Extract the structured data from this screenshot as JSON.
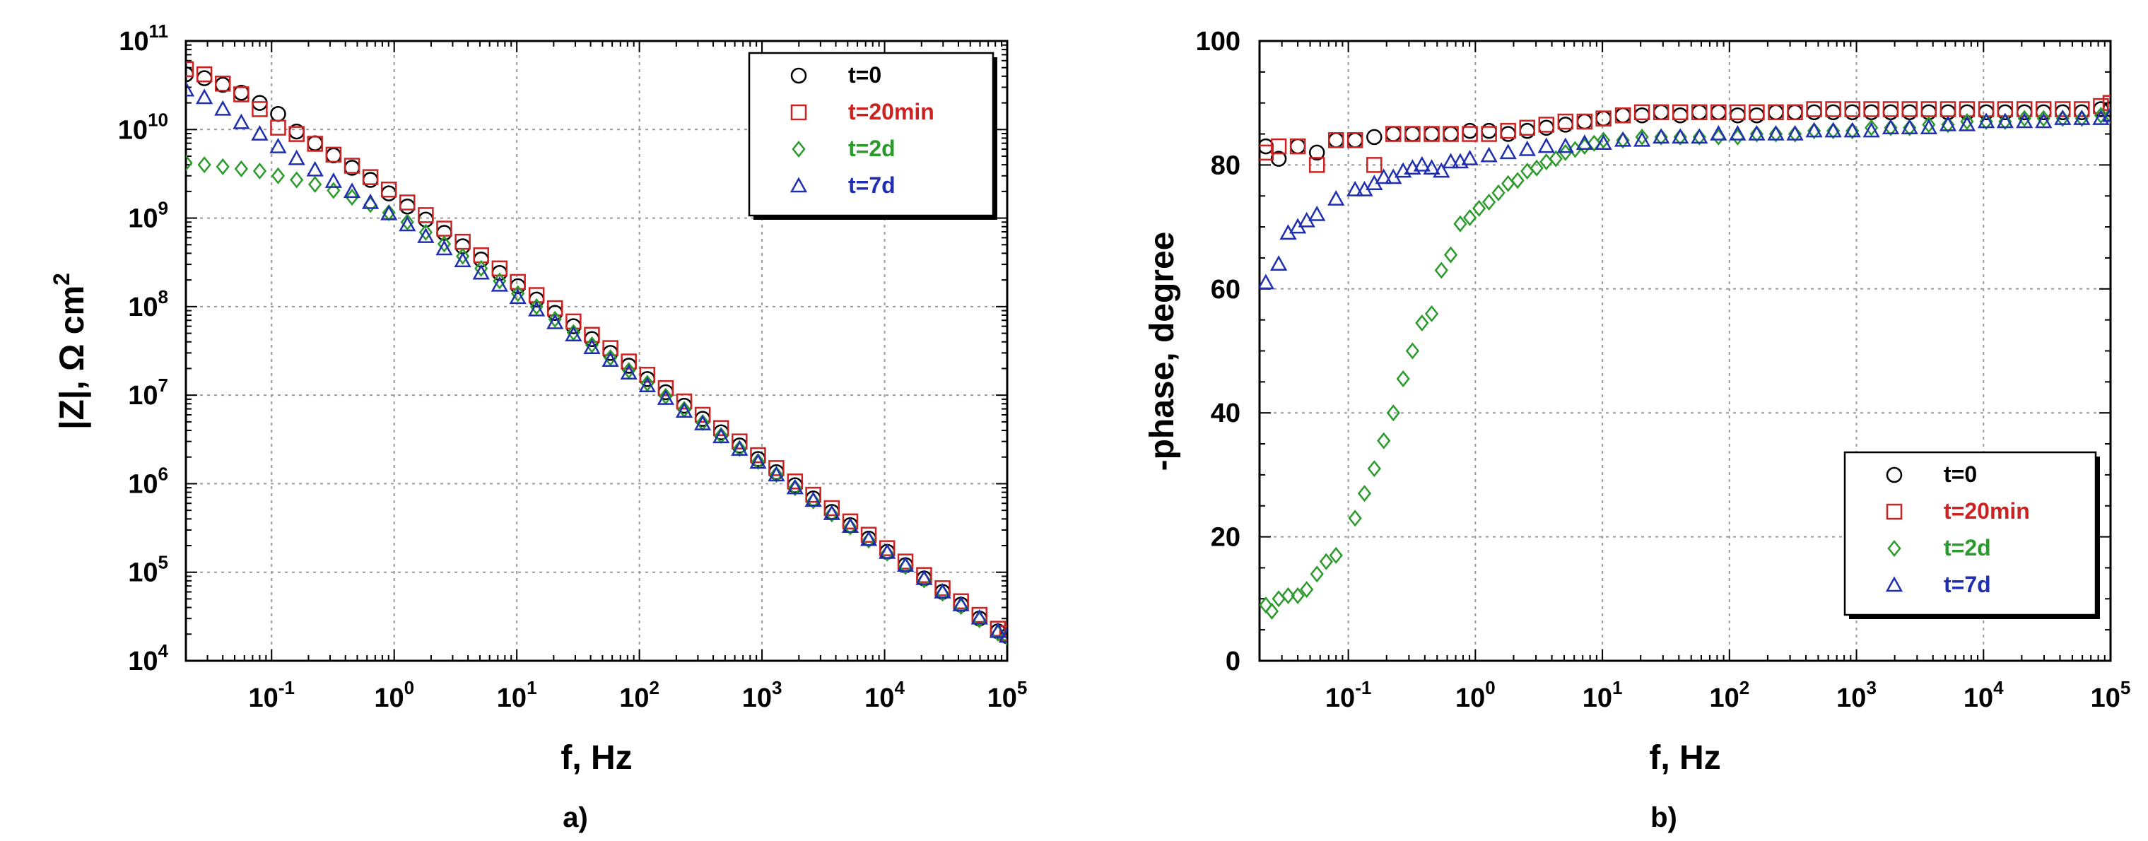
{
  "chart_data": [
    {
      "id": "a",
      "type": "scatter",
      "panel_label": "a)",
      "xlabel": "f, Hz",
      "ylabel": "|Z|, Ω cm",
      "ylabel_sup": "2",
      "xscale": "log",
      "yscale": "log",
      "xlim": [
        0.02,
        100000
      ],
      "ylim": [
        10000,
        100000000000
      ],
      "x_ticks": [
        {
          "base": "10",
          "exp": "-1",
          "value": 0.1
        },
        {
          "base": "10",
          "exp": "0",
          "value": 1
        },
        {
          "base": "10",
          "exp": "1",
          "value": 10
        },
        {
          "base": "10",
          "exp": "2",
          "value": 100
        },
        {
          "base": "10",
          "exp": "3",
          "value": 1000
        },
        {
          "base": "10",
          "exp": "4",
          "value": 10000
        },
        {
          "base": "10",
          "exp": "5",
          "value": 100000
        }
      ],
      "y_ticks": [
        {
          "base": "10",
          "exp": "4",
          "value": 10000
        },
        {
          "base": "10",
          "exp": "5",
          "value": 100000
        },
        {
          "base": "10",
          "exp": "6",
          "value": 1000000
        },
        {
          "base": "10",
          "exp": "7",
          "value": 10000000
        },
        {
          "base": "10",
          "exp": "8",
          "value": 100000000
        },
        {
          "base": "10",
          "exp": "9",
          "value": 1000000000
        },
        {
          "base": "10",
          "exp": "10",
          "value": 10000000000
        },
        {
          "base": "10",
          "exp": "11",
          "value": 100000000000
        }
      ],
      "grid": true,
      "legend_position": "top-right",
      "series": [
        {
          "name": "t=0",
          "marker": "circle",
          "color": "#000000",
          "x": [
            0.02,
            0.0283,
            0.04,
            0.0566,
            0.08,
            0.113,
            0.16,
            0.226,
            0.32,
            0.453,
            0.64,
            0.905,
            1.28,
            1.81,
            2.56,
            3.62,
            5.12,
            7.24,
            10.2,
            14.5,
            20.5,
            29,
            41,
            58,
            82,
            116,
            164,
            232,
            328,
            464,
            656,
            928,
            1310,
            1860,
            2620,
            3710,
            5250,
            7420,
            10500,
            14800,
            21000,
            29700,
            42000,
            59400,
            84000,
            100000
          ],
          "y": [
            42000000000.0,
            38000000000.0,
            32000000000.0,
            26000000000.0,
            20000000000.0,
            15000000000.0,
            9500000000.0,
            7000000000.0,
            5100000000.0,
            3700000000.0,
            2700000000.0,
            1900000000.0,
            1350000000.0,
            960000000.0,
            680000000.0,
            480000000.0,
            340000000.0,
            240000000.0,
            170000000.0,
            120000000.0,
            85000000.0,
            60000000.0,
            43000000.0,
            30000000.0,
            21500000.0,
            15200000.0,
            10800000.0,
            7600000.0,
            5400000.0,
            3800000.0,
            2700000.0,
            1900000.0,
            1350000.0,
            960000.0,
            680000.0,
            480000.0,
            340000.0,
            240000.0,
            170000.0,
            120000.0,
            85000.0,
            60000.0,
            43000.0,
            30000.0,
            21500.0,
            19000.0
          ]
        },
        {
          "name": "t=20min",
          "marker": "square",
          "color": "#cc2222",
          "x": [
            0.02,
            0.0283,
            0.04,
            0.0566,
            0.08,
            0.113,
            0.16,
            0.226,
            0.32,
            0.453,
            0.64,
            0.905,
            1.28,
            1.81,
            2.56,
            3.62,
            5.12,
            7.24,
            10.2,
            14.5,
            20.5,
            29,
            41,
            58,
            82,
            116,
            164,
            232,
            328,
            464,
            656,
            928,
            1310,
            1860,
            2620,
            3710,
            5250,
            7420,
            10500,
            14800,
            21000,
            29700,
            42000,
            59400,
            84000,
            100000
          ],
          "y": [
            48000000000.0,
            42000000000.0,
            33000000000.0,
            25000000000.0,
            17000000000.0,
            10500000000.0,
            8900000000.0,
            6900000000.0,
            5200000000.0,
            3900000000.0,
            2900000000.0,
            2100000000.0,
            1500000000.0,
            1080000000.0,
            760000000.0,
            540000000.0,
            380000000.0,
            270000000.0,
            190000000.0,
            135000000.0,
            96000000.0,
            68000000.0,
            48000000.0,
            34000000.0,
            24000000.0,
            17000000.0,
            12000000.0,
            8500000.0,
            6000000.0,
            4250000.0,
            3000000.0,
            2100000.0,
            1500000.0,
            1060000.0,
            750000.0,
            530000.0,
            375000.0,
            265000.0,
            187000.0,
            132000.0,
            93000.0,
            66000.0,
            47000.0,
            33000.0,
            23000.0,
            20500.0
          ]
        },
        {
          "name": "t=2d",
          "marker": "diamond",
          "color": "#2a9a2a",
          "x": [
            0.02,
            0.0283,
            0.04,
            0.0566,
            0.08,
            0.113,
            0.16,
            0.226,
            0.32,
            0.453,
            0.64,
            0.905,
            1.28,
            1.81,
            2.56,
            3.62,
            5.12,
            7.24,
            10.2,
            14.5,
            20.5,
            29,
            41,
            58,
            82,
            116,
            164,
            232,
            328,
            464,
            656,
            928,
            1310,
            1860,
            2620,
            3710,
            5250,
            7420,
            10500,
            14800,
            21000,
            29700,
            42000,
            59400,
            84000,
            100000
          ],
          "y": [
            4200000000.0,
            4000000000.0,
            3800000000.0,
            3600000000.0,
            3400000000.0,
            3000000000.0,
            2700000000.0,
            2400000000.0,
            2050000000.0,
            1720000000.0,
            1420000000.0,
            1150000000.0,
            900000000.0,
            690000000.0,
            510000000.0,
            370000000.0,
            270000000.0,
            195000000.0,
            140000000.0,
            100000000.0,
            72000000.0,
            51000000.0,
            37000000.0,
            26500000.0,
            19000000.0,
            13600000.0,
            9700000.0,
            6900000.0,
            4900000.0,
            3500000.0,
            2500000.0,
            1780000.0,
            1270000.0,
            900000.0,
            640000.0,
            455000.0,
            325000.0,
            230000.0,
            164000.0,
            116000.0,
            82000.0,
            58000.0,
            41000.0,
            29000.0,
            20500.0,
            18500.0
          ]
        },
        {
          "name": "t=7d",
          "marker": "triangle",
          "color": "#1f2fb0",
          "x": [
            0.02,
            0.0283,
            0.04,
            0.0566,
            0.08,
            0.113,
            0.16,
            0.226,
            0.32,
            0.453,
            0.64,
            0.905,
            1.28,
            1.81,
            2.56,
            3.62,
            5.12,
            7.24,
            10.2,
            14.5,
            20.5,
            29,
            41,
            58,
            82,
            116,
            164,
            232,
            328,
            464,
            656,
            928,
            1310,
            1860,
            2620,
            3710,
            5250,
            7420,
            10500,
            14800,
            21000,
            29700,
            42000,
            59400,
            84000,
            100000
          ],
          "y": [
            28000000000.0,
            23000000000.0,
            17000000000.0,
            12000000000.0,
            8900000000.0,
            6400000000.0,
            4700000000.0,
            3500000000.0,
            2600000000.0,
            2000000000.0,
            1500000000.0,
            1120000000.0,
            840000000.0,
            620000000.0,
            450000000.0,
            330000000.0,
            240000000.0,
            175000000.0,
            127000000.0,
            92000000.0,
            66000000.0,
            48000000.0,
            34500000.0,
            24800000.0,
            17800000.0,
            12800000.0,
            9200000.0,
            6600000.0,
            4750000.0,
            3400000.0,
            2450000.0,
            1750000.0,
            1260000.0,
            900000.0,
            650000.0,
            460000.0,
            330000.0,
            235000.0,
            168000.0,
            120000.0,
            85000.0,
            60000.0,
            43000.0,
            30500.0,
            21500.0,
            19000.0
          ]
        }
      ]
    },
    {
      "id": "b",
      "type": "scatter",
      "panel_label": "b)",
      "xlabel": "f, Hz",
      "ylabel": "-phase, degree",
      "xscale": "log",
      "yscale": "linear",
      "xlim": [
        0.02,
        100000
      ],
      "ylim": [
        0,
        100
      ],
      "x_ticks": [
        {
          "base": "10",
          "exp": "-1",
          "value": 0.1
        },
        {
          "base": "10",
          "exp": "0",
          "value": 1
        },
        {
          "base": "10",
          "exp": "1",
          "value": 10
        },
        {
          "base": "10",
          "exp": "2",
          "value": 100
        },
        {
          "base": "10",
          "exp": "3",
          "value": 1000
        },
        {
          "base": "10",
          "exp": "4",
          "value": 10000
        },
        {
          "base": "10",
          "exp": "5",
          "value": 100000
        }
      ],
      "y_ticks": [
        {
          "label": "0",
          "value": 0
        },
        {
          "label": "20",
          "value": 20
        },
        {
          "label": "40",
          "value": 40
        },
        {
          "label": "60",
          "value": 60
        },
        {
          "label": "80",
          "value": 80
        },
        {
          "label": "100",
          "value": 100
        }
      ],
      "grid": true,
      "legend_position": "bottom-right",
      "series": [
        {
          "name": "t=0",
          "marker": "circle",
          "color": "#000000",
          "x": [
            0.0224,
            0.0283,
            0.04,
            0.0566,
            0.08,
            0.113,
            0.16,
            0.226,
            0.32,
            0.453,
            0.64,
            0.905,
            1.28,
            1.81,
            2.56,
            3.62,
            5.12,
            7.24,
            10.2,
            14.5,
            20.5,
            29,
            41,
            58,
            82,
            116,
            164,
            232,
            328,
            464,
            656,
            928,
            1310,
            1860,
            2620,
            3710,
            5250,
            7420,
            10500,
            14800,
            21000,
            29700,
            42000,
            59400,
            84000,
            100000
          ],
          "y": [
            83,
            81,
            83,
            82,
            84,
            84,
            84.5,
            85,
            85,
            85,
            85,
            85.5,
            85.5,
            85,
            85.5,
            86,
            86.5,
            87,
            87.5,
            88,
            88,
            88.5,
            88,
            88.5,
            88.5,
            88,
            88,
            88.5,
            88.5,
            88.5,
            88.5,
            88.5,
            88.5,
            88.5,
            88.5,
            88.5,
            88.5,
            88.5,
            88.5,
            88.5,
            88.5,
            88.5,
            88.5,
            88.5,
            89,
            89
          ]
        },
        {
          "name": "t=20min",
          "marker": "square",
          "color": "#cc2222",
          "x": [
            0.0224,
            0.0283,
            0.04,
            0.0566,
            0.08,
            0.113,
            0.16,
            0.226,
            0.32,
            0.453,
            0.64,
            0.905,
            1.28,
            1.81,
            2.56,
            3.62,
            5.12,
            7.24,
            10.2,
            14.5,
            20.5,
            29,
            41,
            58,
            82,
            116,
            164,
            232,
            328,
            464,
            656,
            928,
            1310,
            1860,
            2620,
            3710,
            5250,
            7420,
            10500,
            14800,
            21000,
            29700,
            42000,
            59400,
            84000,
            100000
          ],
          "y": [
            82,
            83,
            83,
            80,
            84,
            84,
            80,
            85,
            85,
            85,
            85,
            85,
            85,
            85.5,
            86,
            86.5,
            87,
            87,
            87.5,
            88,
            88.5,
            88.5,
            88.5,
            88.5,
            88.5,
            88.5,
            88.5,
            88.5,
            88.5,
            89,
            89,
            89,
            89,
            89,
            89,
            89,
            89,
            89,
            89,
            89,
            89,
            89,
            89,
            89,
            89.5,
            90
          ]
        },
        {
          "name": "t=2d",
          "marker": "diamond",
          "color": "#2a9a2a",
          "x": [
            0.0224,
            0.025,
            0.0283,
            0.0336,
            0.04,
            0.047,
            0.0566,
            0.067,
            0.08,
            0.113,
            0.134,
            0.16,
            0.19,
            0.226,
            0.27,
            0.32,
            0.38,
            0.453,
            0.54,
            0.64,
            0.76,
            0.905,
            1.07,
            1.28,
            1.52,
            1.81,
            2.15,
            2.56,
            3.04,
            3.62,
            4.3,
            5.12,
            6.1,
            7.24,
            8.6,
            10.2,
            14.5,
            20.5,
            29,
            41,
            58,
            82,
            116,
            164,
            232,
            328,
            464,
            656,
            928,
            1310,
            1860,
            2620,
            3710,
            5250,
            7420,
            10500,
            14800,
            21000,
            29700,
            42000,
            59400,
            84000,
            100000
          ],
          "y": [
            9,
            8,
            10,
            10.5,
            10.5,
            11.5,
            14,
            16,
            17,
            23,
            27,
            31,
            35.5,
            40,
            45.5,
            50,
            54.5,
            56,
            63,
            65.5,
            70.5,
            71.5,
            73,
            74,
            75.5,
            77,
            77.5,
            79,
            79.5,
            80.5,
            81,
            82,
            82.5,
            83,
            83.5,
            84,
            84,
            84.5,
            84.5,
            84.5,
            84.5,
            84.5,
            84.5,
            85,
            85,
            85,
            85.5,
            85.5,
            85.5,
            86,
            86,
            86,
            86.5,
            86.5,
            87,
            87,
            87,
            87.5,
            87.5,
            87.5,
            87.5,
            88,
            88
          ]
        },
        {
          "name": "t=7d",
          "marker": "triangle",
          "color": "#1f2fb0",
          "x": [
            0.0224,
            0.0283,
            0.0336,
            0.04,
            0.047,
            0.0566,
            0.08,
            0.113,
            0.134,
            0.16,
            0.19,
            0.226,
            0.27,
            0.32,
            0.38,
            0.453,
            0.54,
            0.64,
            0.76,
            0.905,
            1.28,
            1.81,
            2.56,
            3.62,
            5.12,
            7.24,
            10.2,
            14.5,
            20.5,
            29,
            41,
            58,
            82,
            116,
            164,
            232,
            328,
            464,
            656,
            928,
            1310,
            1860,
            2620,
            3710,
            5250,
            7420,
            10500,
            14800,
            21000,
            29700,
            42000,
            59400,
            84000,
            100000
          ],
          "y": [
            61,
            64,
            69,
            70,
            71,
            72,
            74.5,
            76,
            76,
            77,
            78,
            78,
            79,
            79.5,
            80,
            79.5,
            79,
            80.5,
            80.5,
            81,
            81.5,
            82,
            82.5,
            83,
            83,
            83.5,
            83.5,
            84,
            84,
            84.5,
            84.5,
            84.5,
            85,
            85,
            85,
            85,
            85,
            85.5,
            85.5,
            85.5,
            85.5,
            86,
            86,
            86,
            86.5,
            86.5,
            87,
            87,
            87,
            87,
            87.5,
            87.5,
            87.5,
            88
          ]
        }
      ]
    }
  ]
}
